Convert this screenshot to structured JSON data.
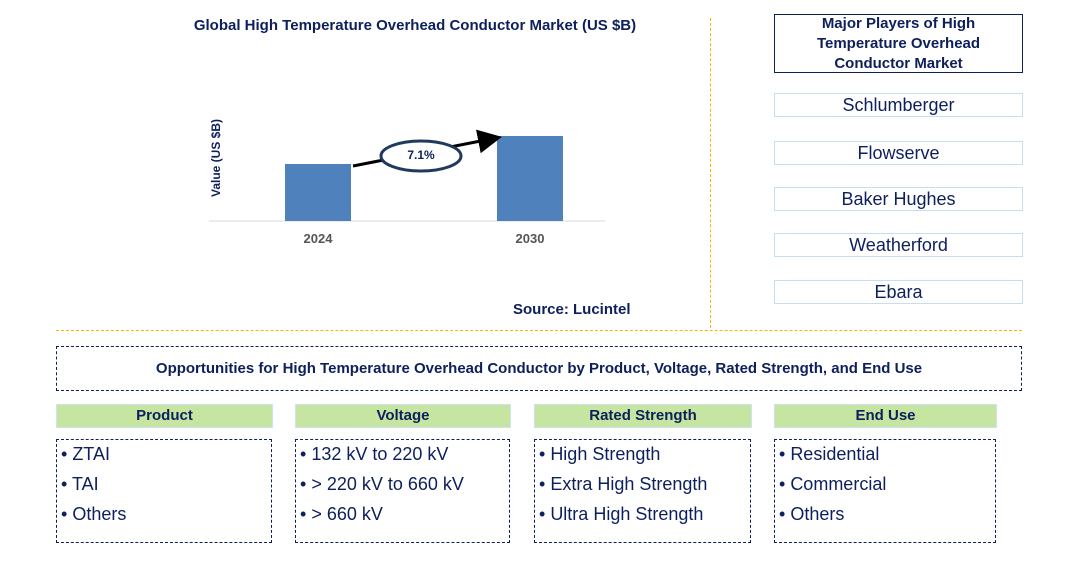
{
  "chart_data": {
    "type": "bar",
    "title": "Global High Temperature Overhead Conductor Market (US $B)",
    "ylabel": "Value (US $B)",
    "categories": [
      "2024",
      "2030"
    ],
    "annotation": "7.1%",
    "bar_color": "#4f81bd",
    "source": "Source: Lucintel"
  },
  "players": {
    "title": "Major Players of High Temperature Overhead Conductor Market",
    "items": [
      "Schlumberger",
      "Flowserve",
      "Baker Hughes",
      "Weatherford",
      "Ebara"
    ]
  },
  "opportunities": {
    "title": "Opportunities for High Temperature Overhead Conductor by Product, Voltage, Rated Strength, and End Use",
    "columns": [
      {
        "header": "Product",
        "items": [
          "ZTAI",
          "TAI",
          "Others"
        ]
      },
      {
        "header": "Voltage",
        "items": [
          "132 kV to 220 kV",
          "> 220 kV to 660 kV",
          "> 660 kV"
        ]
      },
      {
        "header": "Rated Strength",
        "items": [
          "High Strength",
          "Extra High Strength",
          "Ultra High Strength"
        ]
      },
      {
        "header": "End Use",
        "items": [
          "Residential",
          "Commercial",
          "Others"
        ]
      }
    ]
  },
  "colors": {
    "header_green": "#c6e5a0",
    "navy": "#0d1f5c",
    "divider": "#f2b800"
  }
}
